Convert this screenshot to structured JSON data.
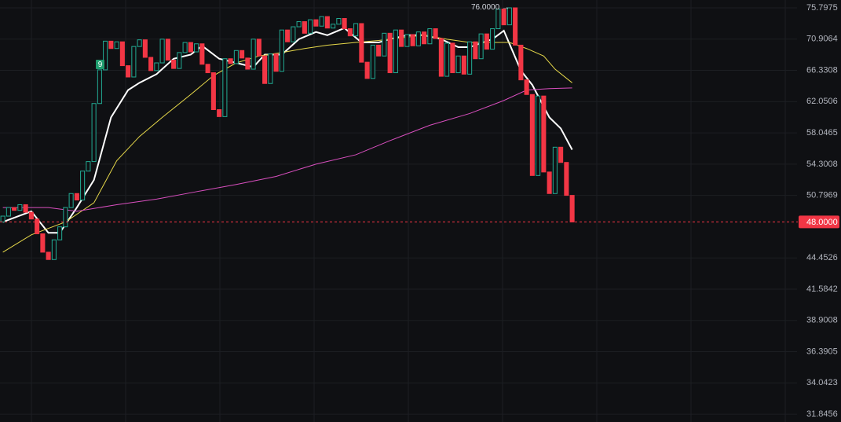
{
  "chart_data": {
    "type": "candlestick",
    "categories": [
      null,
      null,
      null,
      null,
      null,
      null,
      null,
      null,
      null,
      null,
      null,
      null,
      null,
      null,
      null,
      null,
      null,
      null,
      null,
      null,
      null,
      null,
      null,
      null,
      null,
      null,
      null,
      null,
      null,
      null,
      null,
      null,
      null,
      null,
      null,
      null,
      null,
      null,
      null,
      null,
      null,
      null,
      null,
      null,
      null,
      null,
      null,
      null,
      null,
      null,
      null,
      null,
      null,
      null,
      null,
      null,
      null,
      null,
      null,
      null,
      null,
      null,
      null,
      null,
      null,
      null,
      null,
      null,
      null,
      null,
      null,
      null,
      null,
      null,
      null,
      null,
      null,
      null,
      null,
      null,
      null,
      null,
      null,
      null,
      null,
      null,
      null,
      null,
      null,
      null,
      null,
      null,
      null,
      null,
      null,
      null,
      null,
      null,
      null,
      null,
      null
    ],
    "open": [
      48.0,
      48.6,
      49.5,
      49.2,
      49.8,
      49.0,
      48.3,
      46.8,
      45.0,
      44.3,
      46.2,
      47.5,
      49.5,
      51.0,
      50.3,
      53.5,
      54.6,
      61.8,
      66.4,
      70.6,
      69.5,
      70.5,
      67.0,
      65.4,
      69.8,
      70.8,
      68.2,
      66.3,
      67.4,
      70.9,
      67.8,
      66.6,
      68.9,
      70.4,
      69.0,
      70.2,
      67.2,
      66.0,
      61.0,
      60.1,
      68.0,
      67.3,
      69.2,
      68.1,
      66.5,
      70.9,
      68.4,
      64.5,
      68.7,
      66.2,
      72.3,
      70.5,
      72.8,
      73.6,
      71.8,
      73.9,
      72.9,
      74.4,
      72.6,
      73.2,
      74.1,
      72.5,
      71.4,
      73.3,
      67.5,
      65.2,
      70.0,
      68.4,
      71.8,
      66.0,
      72.3,
      69.8,
      71.6,
      69.9,
      72.0,
      70.2,
      72.5,
      71.0,
      65.5,
      70.3,
      66.0,
      68.4,
      65.8,
      70.5,
      68.0,
      71.7,
      69.4,
      72.5,
      75.6,
      73.1,
      75.8,
      70.0,
      65.0,
      63.0,
      53.0,
      62.8,
      53.4,
      51.0,
      56.3,
      54.5,
      50.8
    ],
    "close": [
      48.6,
      49.5,
      49.2,
      49.8,
      49.0,
      48.3,
      46.8,
      45.0,
      44.3,
      46.2,
      47.5,
      49.5,
      51.0,
      50.3,
      53.5,
      54.6,
      61.8,
      66.4,
      70.6,
      69.5,
      70.5,
      67.0,
      65.4,
      69.8,
      70.8,
      68.2,
      66.3,
      67.4,
      70.9,
      67.8,
      66.6,
      68.9,
      70.4,
      69.0,
      70.2,
      67.2,
      66.0,
      61.0,
      60.1,
      68.0,
      67.3,
      69.2,
      68.1,
      66.5,
      70.9,
      68.4,
      64.5,
      68.7,
      66.2,
      72.3,
      70.5,
      72.8,
      73.6,
      71.8,
      73.9,
      72.9,
      74.4,
      72.6,
      73.2,
      74.1,
      72.5,
      71.4,
      73.3,
      67.5,
      65.2,
      70.0,
      68.4,
      71.8,
      66.0,
      72.3,
      69.8,
      71.6,
      69.9,
      72.0,
      70.2,
      72.5,
      71.0,
      65.5,
      70.3,
      66.0,
      68.4,
      65.8,
      70.5,
      68.0,
      71.7,
      69.4,
      72.5,
      75.6,
      73.1,
      75.8,
      70.0,
      65.0,
      63.0,
      53.0,
      62.8,
      53.4,
      51.0,
      56.3,
      54.5,
      50.8,
      48.0
    ],
    "up_color": "#22ab94",
    "down_color": "#f23645",
    "overlays": [
      {
        "type": "line",
        "color": "#ffffff",
        "x": [
          0,
          5,
          8,
          10,
          13,
          16,
          19,
          22,
          24,
          27,
          30,
          33,
          35,
          38,
          41,
          44,
          46,
          49,
          52,
          55,
          57,
          60,
          63,
          66,
          68,
          71,
          74,
          77,
          80,
          82,
          86,
          88,
          91,
          93,
          96,
          98,
          100
        ],
        "values": [
          48.0,
          49.1,
          46.9,
          46.9,
          49.5,
          52.5,
          60.0,
          63.6,
          64.6,
          65.8,
          68.0,
          68.6,
          69.9,
          68.0,
          67.4,
          66.8,
          68.6,
          68.6,
          70.9,
          72.0,
          71.5,
          72.6,
          70.4,
          70.4,
          70.9,
          71.5,
          71.5,
          70.9,
          69.7,
          69.7,
          70.9,
          72.2,
          66.3,
          64.3,
          60.0,
          58.6,
          56.0
        ]
      },
      {
        "type": "line",
        "color": "#e6d84a",
        "x": [
          0,
          5,
          11,
          16,
          20,
          24,
          28,
          33,
          37,
          41,
          45,
          49,
          53,
          57,
          62,
          66,
          70,
          74,
          78,
          82,
          86,
          89,
          92,
          95,
          97,
          100
        ],
        "values": [
          45.0,
          46.7,
          48.0,
          50.0,
          54.7,
          57.6,
          60.0,
          63.0,
          65.6,
          67.4,
          68.4,
          68.9,
          69.5,
          70.0,
          70.4,
          70.7,
          71.1,
          71.5,
          70.9,
          70.4,
          70.4,
          70.4,
          69.5,
          68.4,
          66.5,
          64.6
        ]
      },
      {
        "type": "line",
        "color": "#d94fbf",
        "x": [
          0,
          8,
          13,
          20,
          27,
          34,
          41,
          48,
          55,
          62,
          68,
          75,
          82,
          88,
          92,
          96,
          100
        ],
        "values": [
          49.5,
          49.5,
          49.1,
          49.8,
          50.4,
          51.2,
          52.0,
          52.9,
          54.3,
          55.4,
          57.1,
          59.0,
          60.5,
          62.2,
          63.6,
          63.8,
          63.9
        ]
      }
    ],
    "xlim": [
      -0.5,
      139.5
    ],
    "ylim": [
      31.32,
      77.08
    ],
    "log_scale": true,
    "yticks": [
      75.7975,
      70.9064,
      66.3308,
      62.0506,
      58.0465,
      54.3008,
      50.7969,
      44.4526,
      41.5842,
      38.9008,
      36.3905,
      34.0423,
      31.8456
    ],
    "grid": true,
    "last_price": {
      "value": 48,
      "label": "48.0000"
    },
    "high_marker": {
      "value": 76,
      "label": "76.0000 →"
    },
    "signal": {
      "label": "9"
    }
  }
}
